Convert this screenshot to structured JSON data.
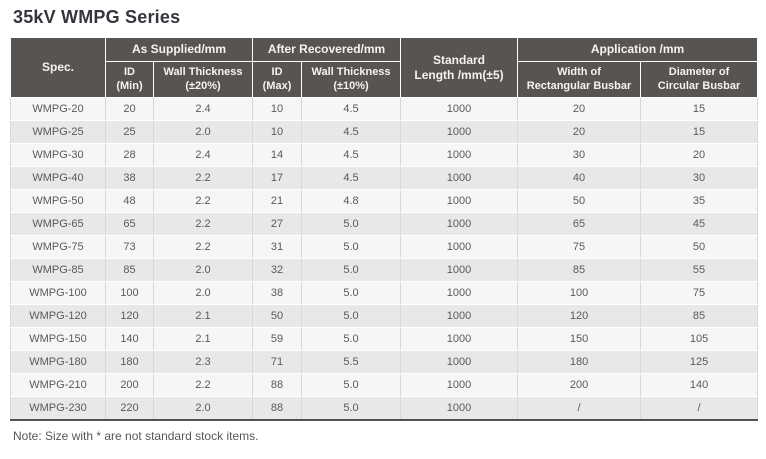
{
  "title": "35kV WMPG Series",
  "note": "Note: Size with * are not standard stock items.",
  "colors": {
    "header_bg": "#575452",
    "header_text": "#f5f4f3",
    "row_odd_bg": "#f7f6f6",
    "row_even_bg": "#e9e8e8",
    "body_text": "#5b5858",
    "cell_border": "#d8d6d6",
    "table_bottom_border": "#56524f",
    "title_text": "#33363d"
  },
  "table": {
    "header": {
      "spec": "Spec.",
      "standard_length": "Standard\nLength /mm(±5)",
      "groups": [
        {
          "label": "As Supplied/mm"
        },
        {
          "label": "After Recovered/mm"
        },
        {
          "label": "Application /mm"
        }
      ],
      "sub_headers": [
        "ID\n(Min)",
        "Wall Thickness\n(±20%)",
        "ID\n(Max)",
        "Wall Thickness\n(±10%)",
        "Width of\nRectangular Busbar",
        "Diameter of\nCircular Busbar"
      ]
    },
    "column_keys": [
      "spec",
      "id_min",
      "wall_thickness_20",
      "id_max",
      "wall_thickness_10",
      "standard_length",
      "width_rect_busbar",
      "dia_circ_busbar"
    ],
    "rows": [
      [
        "WMPG-20",
        "20",
        "2.4",
        "10",
        "4.5",
        "1000",
        "20",
        "15"
      ],
      [
        "WMPG-25",
        "25",
        "2.0",
        "10",
        "4.5",
        "1000",
        "20",
        "15"
      ],
      [
        "WMPG-30",
        "28",
        "2.4",
        "14",
        "4.5",
        "1000",
        "30",
        "20"
      ],
      [
        "WMPG-40",
        "38",
        "2.2",
        "17",
        "4.5",
        "1000",
        "40",
        "30"
      ],
      [
        "WMPG-50",
        "48",
        "2.2",
        "21",
        "4.8",
        "1000",
        "50",
        "35"
      ],
      [
        "WMPG-65",
        "65",
        "2.2",
        "27",
        "5.0",
        "1000",
        "65",
        "45"
      ],
      [
        "WMPG-75",
        "73",
        "2.2",
        "31",
        "5.0",
        "1000",
        "75",
        "50"
      ],
      [
        "WMPG-85",
        "85",
        "2.0",
        "32",
        "5.0",
        "1000",
        "85",
        "55"
      ],
      [
        "WMPG-100",
        "100",
        "2.0",
        "38",
        "5.0",
        "1000",
        "100",
        "75"
      ],
      [
        "WMPG-120",
        "120",
        "2.1",
        "50",
        "5.0",
        "1000",
        "120",
        "85"
      ],
      [
        "WMPG-150",
        "140",
        "2.1",
        "59",
        "5.0",
        "1000",
        "150",
        "105"
      ],
      [
        "WMPG-180",
        "180",
        "2.3",
        "71",
        "5.5",
        "1000",
        "180",
        "125"
      ],
      [
        "WMPG-210",
        "200",
        "2.2",
        "88",
        "5.0",
        "1000",
        "200",
        "140"
      ],
      [
        "WMPG-230",
        "220",
        "2.0",
        "88",
        "5.0",
        "1000",
        "/",
        "/"
      ]
    ]
  }
}
